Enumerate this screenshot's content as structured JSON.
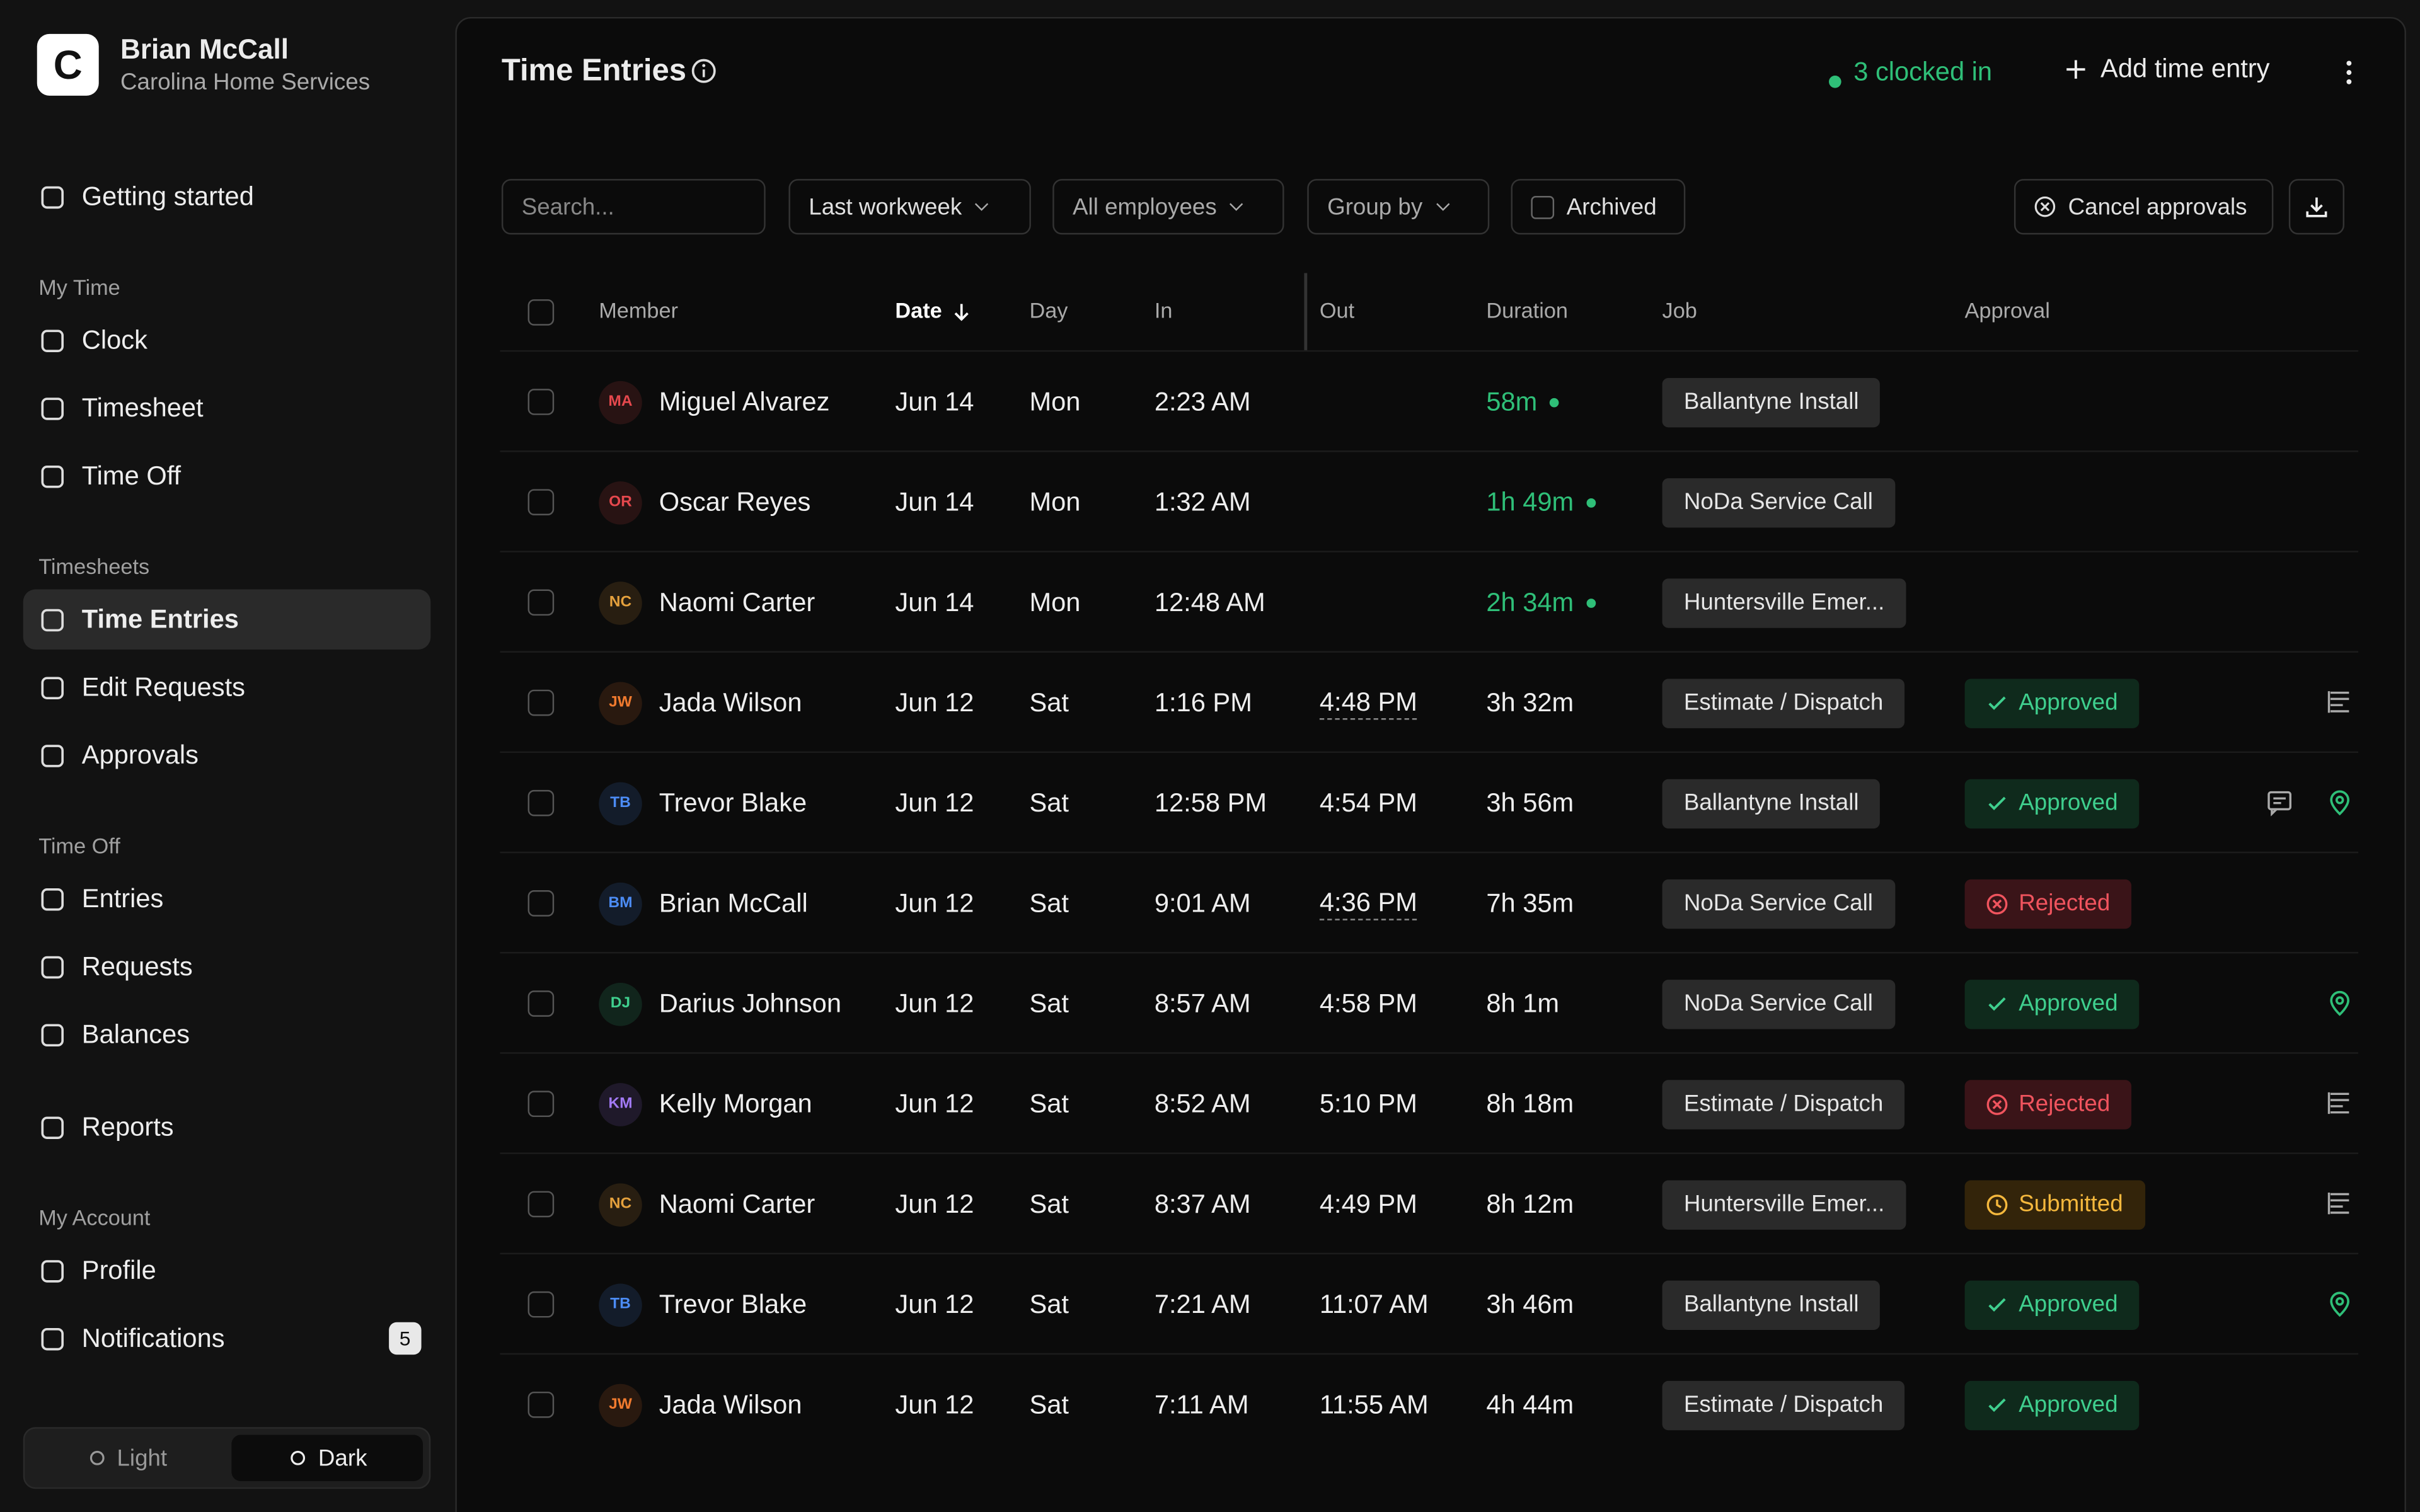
{
  "user": {
    "initial": "C",
    "name": "Brian McCall",
    "company": "Carolina Home Services"
  },
  "nav": [
    {
      "items": [
        "Getting started"
      ]
    },
    {
      "title": "My Time",
      "items": [
        "Clock",
        "Timesheet",
        "Time Off"
      ]
    },
    {
      "title": "Timesheets",
      "items": [
        "Time Entries",
        "Edit Requests",
        "Approvals"
      ],
      "active": 0
    },
    {
      "title": "Time Off",
      "items": [
        "Entries",
        "Requests",
        "Balances"
      ]
    },
    {
      "items": [
        "Reports"
      ]
    },
    {
      "title": "My Account",
      "items": [
        "Profile",
        "Notifications"
      ],
      "badge": 5
    }
  ],
  "theme": {
    "options": [
      "Light",
      "Dark"
    ],
    "active": 1
  },
  "header": {
    "title": "Time Entries",
    "status": "3 clocked in",
    "action": "Add time entry"
  },
  "filters": {
    "search": "Search...",
    "range": "Last workweek",
    "employees": "All employees",
    "group": "Group by",
    "archived": "Archived",
    "cancel": "Cancel approvals"
  },
  "table": {
    "columns": [
      "Member",
      "Date",
      "Day",
      "In",
      "Out",
      "Duration",
      "Job",
      "Approval"
    ],
    "rows": [
      {
        "initials": "MA",
        "color": "#e5484d",
        "name": "Miguel Alvarez",
        "date": "Jun 14",
        "day": "Mon",
        "in": "2:23 AM",
        "out": null,
        "duration": "58m",
        "running": true,
        "job": "Ballantyne Install",
        "approval": null,
        "icons": []
      },
      {
        "initials": "OR",
        "color": "#e5484d",
        "name": "Oscar Reyes",
        "date": "Jun 14",
        "day": "Mon",
        "in": "1:32 AM",
        "out": null,
        "duration": "1h 49m",
        "running": true,
        "job": "NoDa Service Call",
        "approval": null,
        "icons": []
      },
      {
        "initials": "NC",
        "color": "#e5a13d",
        "name": "Naomi Carter",
        "date": "Jun 14",
        "day": "Mon",
        "in": "12:48 AM",
        "out": null,
        "duration": "2h 34m",
        "running": true,
        "job": "Huntersville Emer...",
        "approval": null,
        "icons": []
      },
      {
        "initials": "JW",
        "color": "#f07a2e",
        "name": "Jada Wilson",
        "date": "Jun 12",
        "day": "Sat",
        "in": "1:16 PM",
        "out": "4:48 PM",
        "edited": true,
        "duration": "3h 32m",
        "running": false,
        "job": "Estimate / Dispatch",
        "approval": "Approved",
        "icons": [
          "note"
        ]
      },
      {
        "initials": "TB",
        "color": "#4c8cf5",
        "name": "Trevor Blake",
        "date": "Jun 12",
        "day": "Sat",
        "in": "12:58 PM",
        "out": "4:54 PM",
        "duration": "3h 56m",
        "running": false,
        "job": "Ballantyne Install",
        "approval": "Approved",
        "icons": [
          "comment",
          "pin"
        ]
      },
      {
        "initials": "BM",
        "color": "#4c8cf5",
        "name": "Brian McCall",
        "date": "Jun 12",
        "day": "Sat",
        "in": "9:01 AM",
        "out": "4:36 PM",
        "edited": true,
        "duration": "7h 35m",
        "running": false,
        "job": "NoDa Service Call",
        "approval": "Rejected",
        "icons": []
      },
      {
        "initials": "DJ",
        "color": "#3fcf8e",
        "name": "Darius Johnson",
        "date": "Jun 12",
        "day": "Sat",
        "in": "8:57 AM",
        "out": "4:58 PM",
        "duration": "8h 1m",
        "running": false,
        "job": "NoDa Service Call",
        "approval": "Approved",
        "icons": [
          "pin"
        ]
      },
      {
        "initials": "KM",
        "color": "#a27af5",
        "name": "Kelly Morgan",
        "date": "Jun 12",
        "day": "Sat",
        "in": "8:52 AM",
        "out": "5:10 PM",
        "duration": "8h 18m",
        "running": false,
        "job": "Estimate / Dispatch",
        "approval": "Rejected",
        "icons": [
          "note"
        ]
      },
      {
        "initials": "NC",
        "color": "#e5a13d",
        "name": "Naomi Carter",
        "date": "Jun 12",
        "day": "Sat",
        "in": "8:37 AM",
        "out": "4:49 PM",
        "duration": "8h 12m",
        "running": false,
        "job": "Huntersville Emer...",
        "approval": "Submitted",
        "icons": [
          "note"
        ]
      },
      {
        "initials": "TB",
        "color": "#4c8cf5",
        "name": "Trevor Blake",
        "date": "Jun 12",
        "day": "Sat",
        "in": "7:21 AM",
        "out": "11:07 AM",
        "duration": "3h 46m",
        "running": false,
        "job": "Ballantyne Install",
        "approval": "Approved",
        "icons": [
          "pin"
        ]
      },
      {
        "initials": "JW",
        "color": "#f07a2e",
        "name": "Jada Wilson",
        "date": "Jun 12",
        "day": "Sat",
        "in": "7:11 AM",
        "out": "11:55 AM",
        "duration": "4h 44m",
        "running": false,
        "job": "Estimate / Dispatch",
        "approval": "Approved",
        "icons": []
      }
    ]
  }
}
